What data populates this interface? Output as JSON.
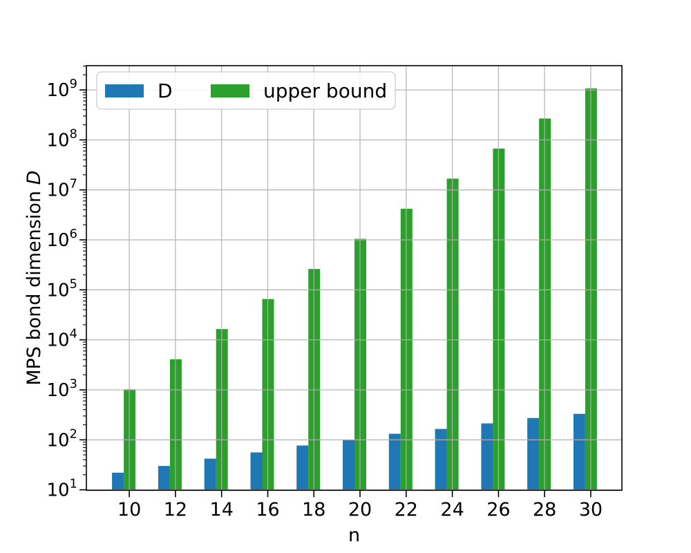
{
  "chart_data": {
    "type": "bar",
    "title": "",
    "xlabel": "n",
    "ylabel": "MPS bond dimension D",
    "ylabel_prefix": "MPS bond dimension ",
    "ylabel_math_suffix": "D",
    "yscale": "log",
    "xlim": [
      8.14,
      31.35
    ],
    "ylim_log10": [
      0.99,
      9.485
    ],
    "categories": [
      10,
      12,
      14,
      16,
      18,
      20,
      22,
      24,
      26,
      28,
      30
    ],
    "series": [
      {
        "name": "D",
        "color": "#1f77b4",
        "values": [
          22,
          30,
          42,
          56,
          77,
          101,
          132,
          165,
          213,
          273,
          331
        ]
      },
      {
        "name": "upper bound",
        "color": "#2ca02c",
        "values": [
          1024,
          4096,
          16384,
          65536,
          262144,
          1048576,
          4194304,
          16777216,
          67108864,
          268435456,
          1073741824
        ]
      }
    ],
    "x_tick_labels": [
      "10",
      "12",
      "14",
      "16",
      "18",
      "20",
      "22",
      "24",
      "26",
      "28",
      "30"
    ],
    "y_tick_base": "10",
    "y_tick_exponents": [
      1,
      2,
      3,
      4,
      5,
      6,
      7,
      8,
      9
    ],
    "grid": true,
    "grid_color": "#b0b0b0",
    "axis_color": "#000000",
    "background_color": "#ffffff",
    "legend_position": "upper left",
    "legend": [
      {
        "label": "D",
        "color": "#1f77b4"
      },
      {
        "label": "upper bound",
        "color": "#2ca02c"
      }
    ]
  }
}
